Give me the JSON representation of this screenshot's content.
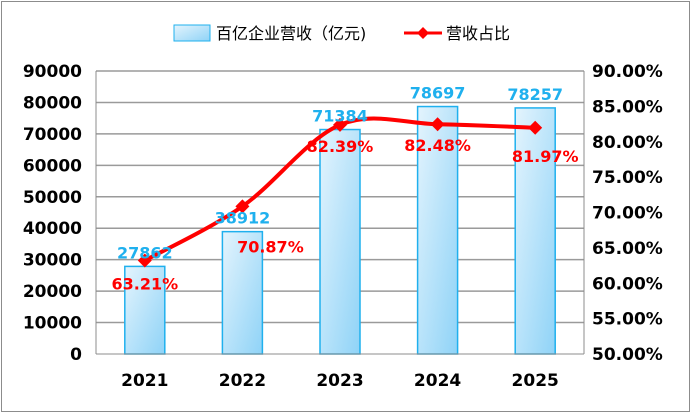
{
  "chart_data": {
    "type": "bar+line",
    "categories": [
      "2021",
      "2022",
      "2023",
      "2024",
      "2025"
    ],
    "series": [
      {
        "name": "百亿企业营收（亿元)",
        "type": "bar",
        "axis": "left",
        "values": [
          27862,
          38912,
          71384,
          78697,
          78257
        ],
        "labels": [
          "27862",
          "38912",
          "71384",
          "78697",
          "78257"
        ],
        "color": "#1fb0ee"
      },
      {
        "name": "营收占比",
        "type": "line",
        "axis": "right",
        "values": [
          63.21,
          70.87,
          82.39,
          82.48,
          81.97
        ],
        "labels": [
          "63.21%",
          "70.87%",
          "82.39%",
          "82.48%",
          "81.97%"
        ],
        "color": "#ff0000"
      }
    ],
    "y_left": {
      "lim": [
        0,
        90000
      ],
      "ticks": [
        "0",
        "10000",
        "20000",
        "30000",
        "40000",
        "50000",
        "60000",
        "70000",
        "80000",
        "90000"
      ]
    },
    "y_right": {
      "lim": [
        50,
        90
      ],
      "ticks": [
        "50.00%",
        "55.00%",
        "60.00%",
        "65.00%",
        "70.00%",
        "75.00%",
        "80.00%",
        "85.00%",
        "90.00%"
      ]
    },
    "grid": true,
    "legend": "top-center"
  }
}
